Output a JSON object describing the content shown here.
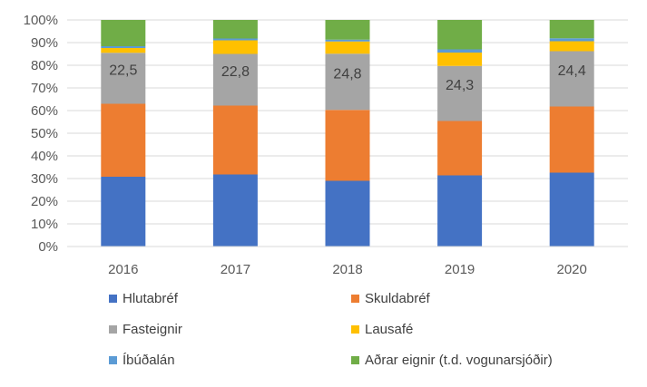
{
  "chart_data": {
    "type": "bar",
    "stacked": true,
    "percent_stacked": true,
    "categories": [
      "2016",
      "2017",
      "2018",
      "2019",
      "2020"
    ],
    "series": [
      {
        "name": "Hlutabréf",
        "color": "#4472C4",
        "values": [
          30.8,
          31.8,
          29.0,
          31.4,
          32.6
        ]
      },
      {
        "name": "Skuldabréf",
        "color": "#ED7D31",
        "values": [
          32.2,
          30.4,
          31.3,
          24.0,
          29.2
        ]
      },
      {
        "name": "Fasteignir",
        "color": "#A5A5A5",
        "values": [
          22.5,
          22.8,
          24.8,
          24.3,
          24.4
        ]
      },
      {
        "name": "Lausafé",
        "color": "#FFC000",
        "values": [
          2.1,
          6.0,
          5.4,
          5.9,
          4.4
        ]
      },
      {
        "name": "Íbúðalán",
        "color": "#5B9BD5",
        "values": [
          0.8,
          0.8,
          0.8,
          1.4,
          1.3
        ]
      },
      {
        "name": "Aðrar eignir (t.d. vogunarsjóðir)",
        "color": "#70AD47",
        "values": [
          11.6,
          8.2,
          8.7,
          13.0,
          8.1
        ]
      }
    ],
    "data_labels": {
      "series": "Fasteignir",
      "values": [
        "22,5",
        "22,8",
        "24,8",
        "24,3",
        "24,4"
      ]
    },
    "y_ticks": [
      "0%",
      "10%",
      "20%",
      "30%",
      "40%",
      "50%",
      "60%",
      "70%",
      "80%",
      "90%",
      "100%"
    ],
    "ylim": [
      0,
      100
    ],
    "grid": true,
    "legend_position": "bottom",
    "title": "",
    "xlabel": "",
    "ylabel": ""
  }
}
